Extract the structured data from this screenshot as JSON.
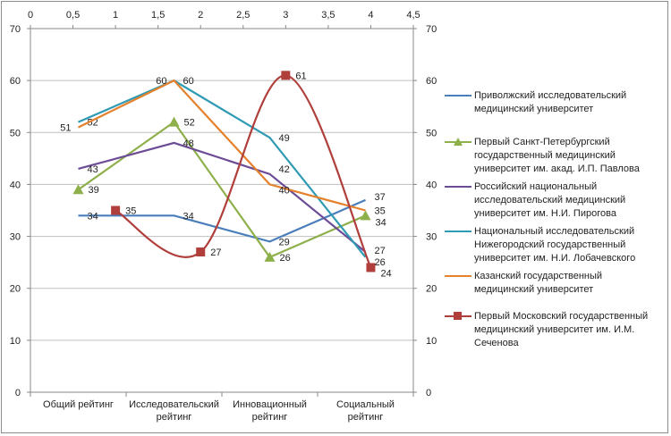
{
  "chart_data": {
    "type": "line",
    "categories": [
      "Общий рейтинг",
      "Исследовательский рейтинг",
      "Инновационный рейтинг",
      "Социальный рейтинг"
    ],
    "ylim": [
      0,
      70
    ],
    "yticks": [
      0,
      10,
      20,
      30,
      40,
      50,
      60,
      70
    ],
    "secondary_y_ticks": [
      0,
      10,
      20,
      30,
      40,
      50,
      60,
      70
    ],
    "secondary_x": {
      "lim": [
        0,
        4.5
      ],
      "ticks": [
        "0",
        "0,5",
        "1",
        "1,5",
        "2",
        "2,5",
        "3",
        "3,5",
        "4",
        "4,5"
      ]
    },
    "grid": "horizontal",
    "legend": "right",
    "series": [
      {
        "name": "Приволжский исследовательский медицинский университет",
        "values": [
          34,
          34,
          29,
          37
        ],
        "color": "#4a7ebb",
        "marker": "none"
      },
      {
        "name": "Первый Санкт-Петербургский государственный медицинский университет им. акад. И.П. Павлова",
        "values": [
          39,
          52,
          26,
          34
        ],
        "color": "#8eb04a",
        "marker": "triangle"
      },
      {
        "name": "Российский национальный исследовательский медицинский университет им. Н.И. Пирогова",
        "values": [
          43,
          48,
          42,
          27
        ],
        "color": "#6c4c96",
        "marker": "none"
      },
      {
        "name": "Национальный исследовательский Нижегородский государственный университет им. Н.И. Лобачевского",
        "values": [
          52,
          60,
          49,
          26
        ],
        "color": "#2f9ab3",
        "marker": "none"
      },
      {
        "name": "Казанский государственный медицинский университет",
        "values": [
          51,
          60,
          40,
          35
        ],
        "color": "#e5812c",
        "marker": "none"
      },
      {
        "name": "Первый Московский государственный медицинский университет им. И.М. Сеченова",
        "x": [
          1,
          2,
          3,
          4
        ],
        "values": [
          35,
          27,
          61,
          24
        ],
        "color": "#b03f3c",
        "marker": "square",
        "smooth": true,
        "axis": "secondary-x"
      }
    ]
  }
}
